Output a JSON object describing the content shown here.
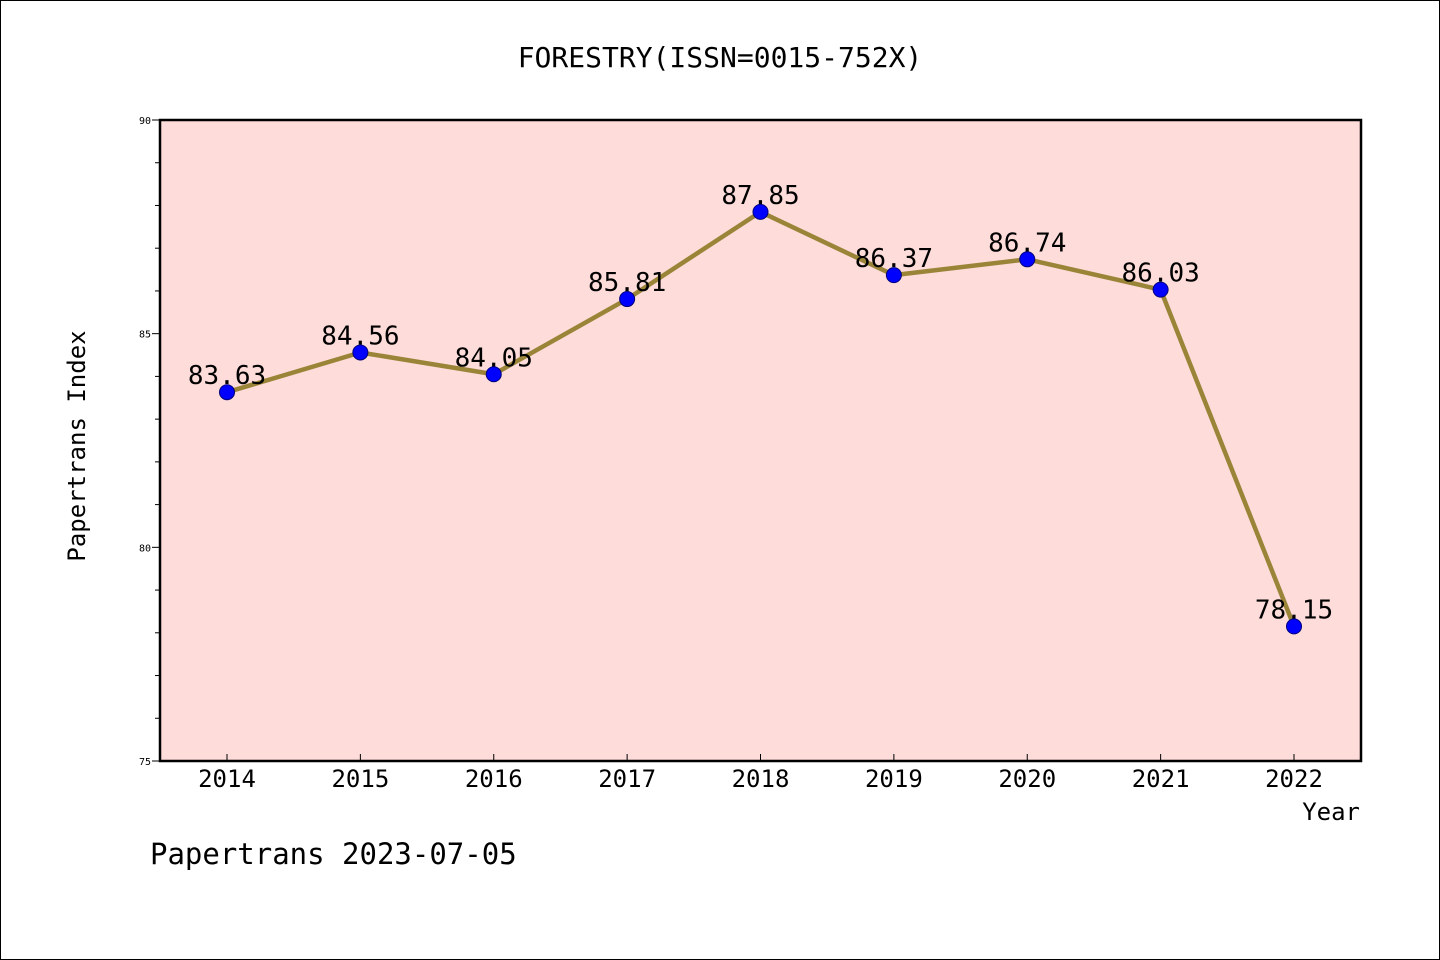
{
  "chart_data": {
    "type": "line",
    "title": "FORESTRY(ISSN=0015-752X)",
    "xlabel": "Year",
    "ylabel": "Papertrans Index",
    "categories": [
      "2014",
      "2015",
      "2016",
      "2017",
      "2018",
      "2019",
      "2020",
      "2021",
      "2022"
    ],
    "series": [
      {
        "values": [
          83.63,
          84.56,
          84.05,
          85.81,
          87.85,
          86.37,
          86.74,
          86.03,
          78.15
        ],
        "labels": [
          "83.63",
          "84.56",
          "84.05",
          "85.81",
          "87.85",
          "86.37",
          "86.74",
          "86.03",
          "78.15"
        ]
      }
    ],
    "ylim": [
      75,
      90
    ],
    "y_ticks": [
      75,
      80,
      85,
      90
    ],
    "y_tick_labels": [
      "75",
      "80",
      "85",
      "90"
    ],
    "y_minor_step": 1,
    "grid": false,
    "colors": {
      "plot_background": "#fddcd9",
      "line": "#9a8438",
      "marker_fill": "#0000ff",
      "marker_edge": "#00007a",
      "axis": "#000000"
    }
  },
  "footer": {
    "text": "Papertrans 2023-07-05"
  }
}
